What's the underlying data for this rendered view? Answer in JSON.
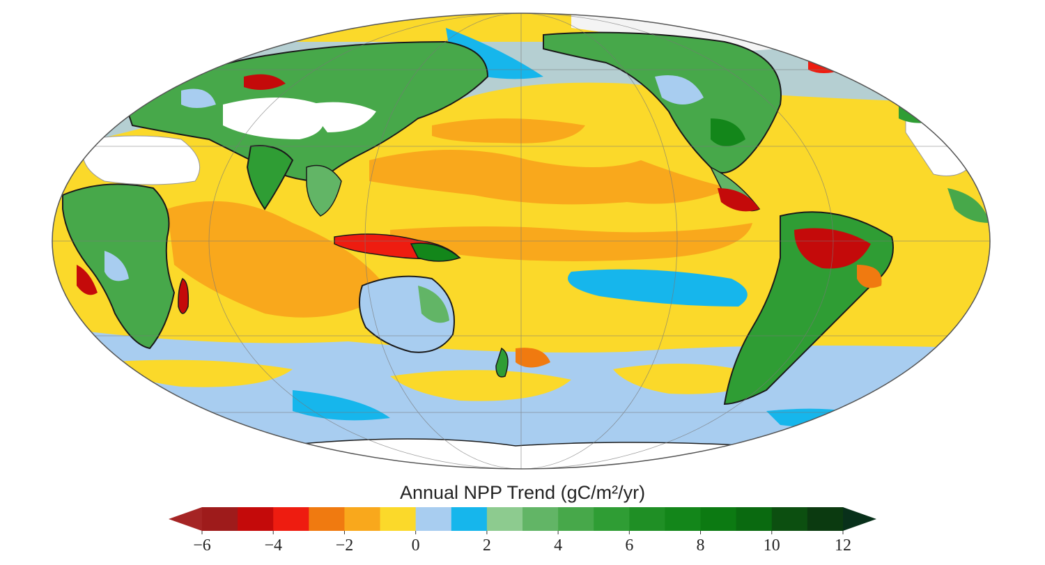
{
  "map": {
    "projection": "Mollweide",
    "central_meridian": "180",
    "variable": "Annual net primary productivity trend"
  },
  "legend": {
    "title": "Annual NPP Trend (gC/m²/yr)",
    "min": -6,
    "max": 12,
    "extend": "both",
    "bins": [
      {
        "from": -6,
        "to": -5,
        "color": "#9e1b1b"
      },
      {
        "from": -5,
        "to": -4,
        "color": "#c40a0a"
      },
      {
        "from": -4,
        "to": -3,
        "color": "#ee1c10"
      },
      {
        "from": -3,
        "to": -2,
        "color": "#f07a10"
      },
      {
        "from": -2,
        "to": -1,
        "color": "#f9a81c"
      },
      {
        "from": -1,
        "to": 0,
        "color": "#fbd92a"
      },
      {
        "from": 0,
        "to": 1,
        "color": "#a8cdf0"
      },
      {
        "from": 1,
        "to": 2,
        "color": "#16b6ec"
      },
      {
        "from": 2,
        "to": 3,
        "color": "#8dcb8f"
      },
      {
        "from": 3,
        "to": 4,
        "color": "#62b566"
      },
      {
        "from": 4,
        "to": 5,
        "color": "#47a84a"
      },
      {
        "from": 5,
        "to": 6,
        "color": "#2f9d34"
      },
      {
        "from": 6,
        "to": 7,
        "color": "#1f8f25"
      },
      {
        "from": 7,
        "to": 8,
        "color": "#13861a"
      },
      {
        "from": 8,
        "to": 9,
        "color": "#0c7a12"
      },
      {
        "from": 9,
        "to": 10,
        "color": "#0a6a10"
      },
      {
        "from": 10,
        "to": 11,
        "color": "#0c4f10"
      },
      {
        "from": 11,
        "to": 12,
        "color": "#0b3a10"
      }
    ],
    "over_color": "#08301a",
    "under_color": "#a52424",
    "ticks": [
      {
        "value": -6,
        "label": "−6"
      },
      {
        "value": -4,
        "label": "−4"
      },
      {
        "value": -2,
        "label": "−2"
      },
      {
        "value": 0,
        "label": "0"
      },
      {
        "value": 2,
        "label": "2"
      },
      {
        "value": 4,
        "label": "4"
      },
      {
        "value": 6,
        "label": "6"
      },
      {
        "value": 8,
        "label": "8"
      },
      {
        "value": 10,
        "label": "10"
      },
      {
        "value": 12,
        "label": "12"
      }
    ]
  }
}
